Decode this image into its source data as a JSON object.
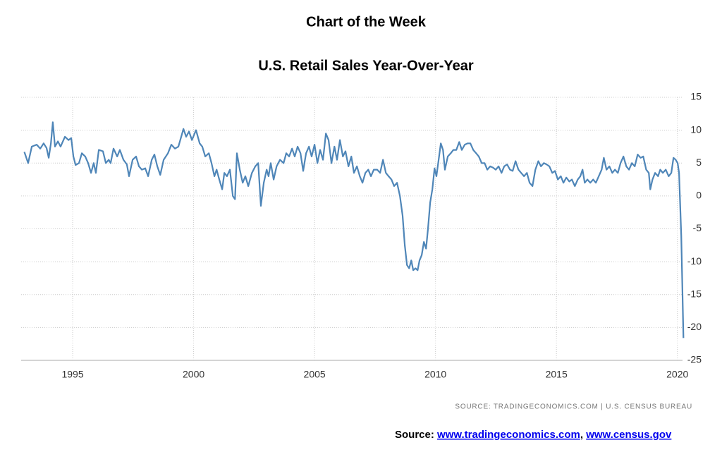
{
  "chart_data": {
    "type": "line",
    "title": "Chart of the Week",
    "subtitle": "U.S. Retail Sales Year-Over-Year",
    "source_note": "SOURCE: TRADINGECONOMICS.COM | U.S. CENSUS BUREAU",
    "footer": {
      "prefix": "Source:",
      "links": [
        "www.tradingeconomics.com",
        "www.census.gov"
      ],
      "separator": ","
    },
    "x": [
      1993.0,
      1993.16,
      1993.31,
      1993.51,
      1993.66,
      1993.8,
      1993.92,
      1994.01,
      1994.1,
      1994.18,
      1994.27,
      1994.39,
      1994.5,
      1994.68,
      1994.83,
      1994.94,
      1995.03,
      1995.12,
      1995.26,
      1995.38,
      1995.52,
      1995.64,
      1995.76,
      1995.87,
      1995.96,
      1996.08,
      1996.25,
      1996.37,
      1996.49,
      1996.57,
      1996.69,
      1996.84,
      1996.95,
      1997.1,
      1997.24,
      1997.33,
      1997.48,
      1997.62,
      1997.74,
      1997.86,
      1998.0,
      1998.12,
      1998.27,
      1998.38,
      1998.5,
      1998.62,
      1998.76,
      1998.94,
      1999.08,
      1999.23,
      1999.37,
      1999.58,
      1999.69,
      1999.81,
      1999.93,
      2000.1,
      2000.25,
      2000.36,
      2000.48,
      2000.63,
      2000.74,
      2000.86,
      2000.95,
      2001.06,
      2001.18,
      2001.27,
      2001.38,
      2001.5,
      2001.62,
      2001.71,
      2001.79,
      2001.91,
      2002.03,
      2002.14,
      2002.26,
      2002.41,
      2002.55,
      2002.67,
      2002.78,
      2002.9,
      2003.02,
      2003.1,
      2003.19,
      2003.31,
      2003.43,
      2003.57,
      2003.72,
      2003.83,
      2003.95,
      2004.07,
      2004.18,
      2004.3,
      2004.42,
      2004.53,
      2004.65,
      2004.77,
      2004.88,
      2005.0,
      2005.12,
      2005.23,
      2005.35,
      2005.47,
      2005.58,
      2005.7,
      2005.82,
      2005.93,
      2006.05,
      2006.17,
      2006.28,
      2006.4,
      2006.52,
      2006.63,
      2006.75,
      2006.87,
      2006.98,
      2007.1,
      2007.22,
      2007.33,
      2007.45,
      2007.59,
      2007.71,
      2007.83,
      2007.95,
      2008.06,
      2008.18,
      2008.29,
      2008.41,
      2008.53,
      2008.64,
      2008.73,
      2008.82,
      2008.91,
      2009.0,
      2009.08,
      2009.17,
      2009.26,
      2009.34,
      2009.43,
      2009.52,
      2009.61,
      2009.69,
      2009.78,
      2009.87,
      2009.96,
      2010.04,
      2010.13,
      2010.22,
      2010.31,
      2010.39,
      2010.51,
      2010.63,
      2010.74,
      2010.86,
      2010.98,
      2011.09,
      2011.21,
      2011.33,
      2011.44,
      2011.56,
      2011.68,
      2011.79,
      2011.91,
      2012.03,
      2012.14,
      2012.26,
      2012.38,
      2012.49,
      2012.61,
      2012.73,
      2012.84,
      2012.96,
      2013.08,
      2013.19,
      2013.31,
      2013.43,
      2013.54,
      2013.66,
      2013.78,
      2013.89,
      2014.01,
      2014.13,
      2014.25,
      2014.36,
      2014.48,
      2014.59,
      2014.71,
      2014.83,
      2014.94,
      2015.06,
      2015.18,
      2015.29,
      2015.41,
      2015.53,
      2015.64,
      2015.76,
      2015.88,
      2015.99,
      2016.08,
      2016.17,
      2016.28,
      2016.4,
      2016.52,
      2016.63,
      2016.75,
      2016.87,
      2016.96,
      2017.07,
      2017.19,
      2017.31,
      2017.42,
      2017.54,
      2017.65,
      2017.77,
      2017.89,
      2018.0,
      2018.12,
      2018.24,
      2018.36,
      2018.48,
      2018.59,
      2018.71,
      2018.82,
      2018.88,
      2018.97,
      2019.08,
      2019.2,
      2019.29,
      2019.4,
      2019.52,
      2019.64,
      2019.75,
      2019.84,
      2019.93,
      2020.01,
      2020.07,
      2020.16,
      2020.25
    ],
    "series": [
      {
        "color": "#4f86b8",
        "values": [
          6.7,
          5.0,
          7.5,
          7.8,
          7.2,
          8.0,
          7.3,
          5.8,
          8.0,
          11.2,
          7.5,
          8.3,
          7.5,
          9.0,
          8.5,
          8.8,
          6.0,
          4.7,
          5.0,
          6.5,
          6.0,
          5.0,
          3.5,
          5.0,
          3.5,
          7.0,
          6.8,
          5.0,
          5.5,
          5.0,
          7.2,
          6.0,
          7.0,
          5.5,
          4.8,
          3.0,
          5.5,
          6.0,
          4.5,
          4.0,
          4.2,
          3.0,
          5.5,
          6.3,
          4.5,
          3.2,
          5.5,
          6.5,
          7.8,
          7.2,
          7.5,
          10.2,
          9.0,
          9.8,
          8.5,
          10.0,
          8.0,
          7.5,
          6.0,
          6.5,
          5.0,
          3.0,
          4.0,
          2.5,
          1.0,
          3.5,
          3.0,
          4.0,
          0.0,
          -0.5,
          6.5,
          4.0,
          2.0,
          3.0,
          1.5,
          3.5,
          4.5,
          5.0,
          -1.5,
          2.0,
          4.0,
          3.0,
          5.0,
          2.5,
          4.5,
          5.5,
          5.0,
          6.5,
          6.0,
          7.2,
          6.0,
          7.5,
          6.5,
          3.8,
          6.5,
          7.5,
          6.0,
          7.8,
          5.0,
          7.0,
          5.5,
          9.5,
          8.5,
          5.0,
          7.5,
          5.5,
          8.5,
          6.0,
          6.8,
          4.5,
          6.0,
          3.5,
          4.5,
          3.0,
          2.0,
          3.5,
          4.0,
          3.0,
          4.0,
          4.0,
          3.5,
          5.5,
          3.5,
          3.0,
          2.5,
          1.5,
          2.0,
          0.0,
          -3.0,
          -7.5,
          -10.5,
          -11.0,
          -9.8,
          -11.3,
          -11.0,
          -11.3,
          -9.8,
          -9.0,
          -7.0,
          -8.0,
          -5.0,
          -1.0,
          1.0,
          4.2,
          3.0,
          5.5,
          8.0,
          7.0,
          4.0,
          6.0,
          6.5,
          7.0,
          7.0,
          8.2,
          7.0,
          7.8,
          8.0,
          8.0,
          7.0,
          6.5,
          6.0,
          5.0,
          5.0,
          4.0,
          4.5,
          4.3,
          4.0,
          4.5,
          3.5,
          4.5,
          4.8,
          4.0,
          3.8,
          5.3,
          4.0,
          3.5,
          3.0,
          3.5,
          2.0,
          1.5,
          4.0,
          5.3,
          4.5,
          5.0,
          4.8,
          4.5,
          3.5,
          3.8,
          2.5,
          3.0,
          2.0,
          2.8,
          2.2,
          2.5,
          1.5,
          2.5,
          3.0,
          4.0,
          2.0,
          2.5,
          2.0,
          2.5,
          2.0,
          3.0,
          4.0,
          5.8,
          4.0,
          4.5,
          3.5,
          4.0,
          3.5,
          5.0,
          6.0,
          4.5,
          4.0,
          5.0,
          4.5,
          6.3,
          5.8,
          6.0,
          4.0,
          3.5,
          1.0,
          2.5,
          3.5,
          3.0,
          4.0,
          3.5,
          4.0,
          3.0,
          3.5,
          5.8,
          5.5,
          5.0,
          3.5,
          -6.0,
          -21.6
        ]
      }
    ],
    "xlim": [
      1992.87,
      2020.3
    ],
    "xticks": [
      1995,
      2000,
      2005,
      2010,
      2015,
      2020
    ],
    "ylim": [
      -25,
      15
    ],
    "yticks": [
      15,
      10,
      5,
      0,
      -5,
      -10,
      -15,
      -20,
      -25
    ],
    "grid": true
  }
}
